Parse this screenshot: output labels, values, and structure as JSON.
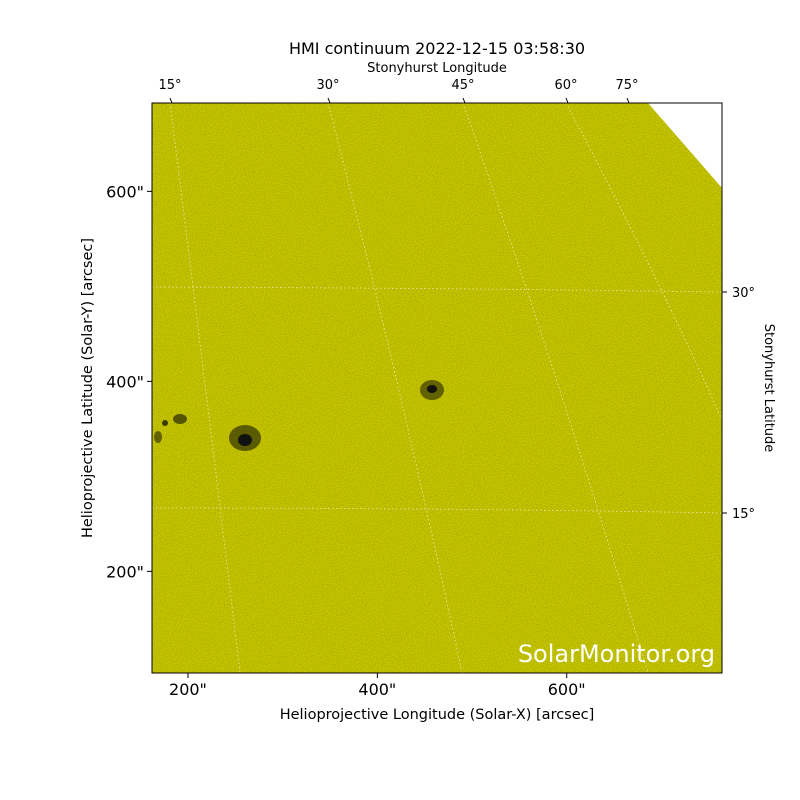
{
  "chart_data": {
    "type": "image",
    "title": "HMI continuum 2022-12-15 03:58:30",
    "x_label": "Helioprojective Longitude (Solar-X) [arcsec]",
    "y_label": "Helioprojective Latitude (Solar-Y) [arcsec]",
    "top_label": "Stonyhurst Longitude",
    "right_label": "Stonyhurst Latitude",
    "xlim": [
      162,
      764
    ],
    "ylim": [
      93,
      693
    ],
    "xticks": [
      {
        "value": 200,
        "label": "200\""
      },
      {
        "value": 400,
        "label": "400\""
      },
      {
        "value": 600,
        "label": "600\""
      }
    ],
    "yticks": [
      {
        "value": 200,
        "label": "200\""
      },
      {
        "value": 400,
        "label": "400\""
      },
      {
        "value": 600,
        "label": "600\""
      }
    ],
    "top_ticks": [
      "15°",
      "30°",
      "45°",
      "60°",
      "75°"
    ],
    "right_ticks": [
      "30°",
      "15°"
    ],
    "color": "#cccc00",
    "watermark": "SolarMonitor.org"
  }
}
